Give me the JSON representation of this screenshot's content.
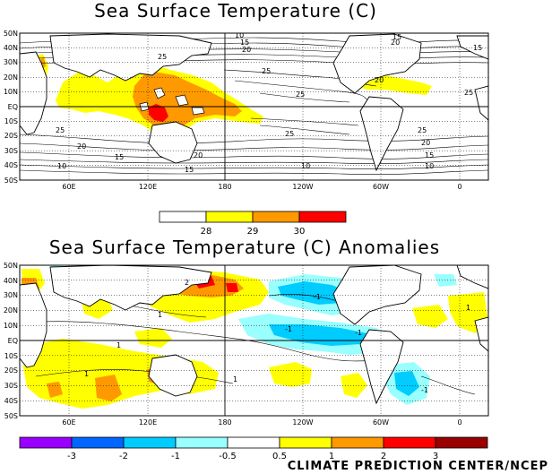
{
  "top_map": {
    "title": "Sea Surface Temperature (C)",
    "lat_labels": [
      "50N",
      "40N",
      "30N",
      "20N",
      "10N",
      "EQ",
      "10S",
      "20S",
      "30S",
      "40S",
      "50S"
    ],
    "lon_labels": [
      "60E",
      "120E",
      "180",
      "120W",
      "60W",
      "0"
    ],
    "contour_labels": [
      "10",
      "15",
      "20",
      "25",
      "25",
      "15",
      "20",
      "15",
      "25",
      "20",
      "25",
      "25",
      "20",
      "15",
      "10",
      "15",
      "20",
      "25",
      "10",
      "25",
      "20",
      "15",
      "10"
    ],
    "colorbar": {
      "labels": [
        "28",
        "29",
        "30"
      ],
      "colors": [
        "#ffffff",
        "#ffff00",
        "#ff9900",
        "#ff0000"
      ]
    }
  },
  "bottom_map": {
    "title": "Sea Surface Temperature (C) Anomalies",
    "lat_labels": [
      "50N",
      "40N",
      "30N",
      "20N",
      "10N",
      "EQ",
      "10S",
      "20S",
      "30S",
      "40S",
      "50S"
    ],
    "lon_labels": [
      "60E",
      "120E",
      "180",
      "120W",
      "60W",
      "0"
    ],
    "contour_labels": [
      "2",
      "1",
      "1",
      "-1",
      "-1",
      "-1",
      "1",
      "1",
      "-1",
      "1"
    ],
    "colorbar": {
      "labels": [
        "-3",
        "-2",
        "-1",
        "-0.5",
        "0.5",
        "1",
        "2",
        "3"
      ],
      "colors": [
        "#9900ff",
        "#0066ff",
        "#00ccff",
        "#99ffff",
        "#ffffff",
        "#ffff00",
        "#ff9900",
        "#ff0000",
        "#990000"
      ]
    }
  },
  "credit": "CLIMATE PREDICTION CENTER/NCEP"
}
